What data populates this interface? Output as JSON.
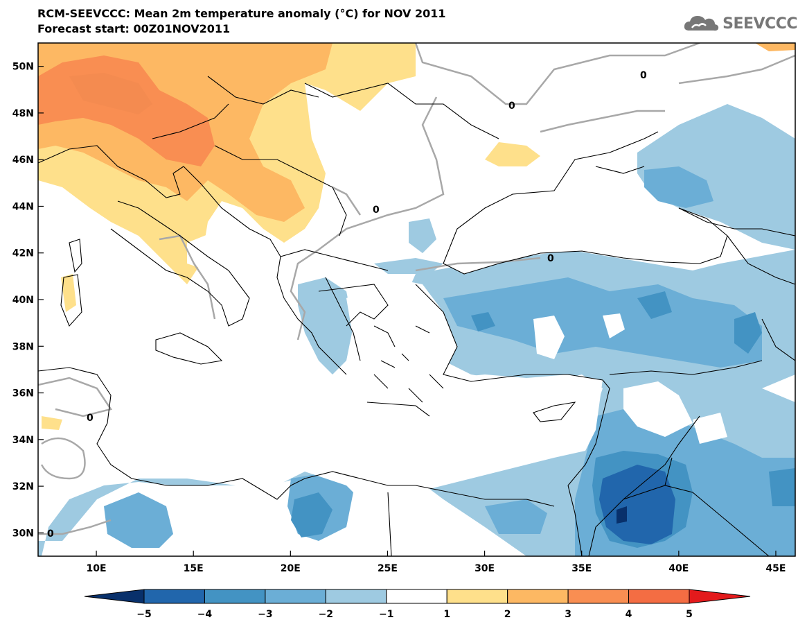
{
  "header": {
    "title": "RCM-SEEVCCC: Mean 2m temperature anomaly (°C) for NOV 2011",
    "subtitle": "Forecast start: 00Z01NOV2011"
  },
  "logo": {
    "text": "SEEVCCC",
    "icon": "cloud-icon"
  },
  "map": {
    "lat_labels": [
      "50N",
      "48N",
      "46N",
      "44N",
      "42N",
      "40N",
      "38N",
      "36N",
      "34N",
      "32N",
      "30N"
    ],
    "lat_values": [
      50,
      48,
      46,
      44,
      42,
      40,
      38,
      36,
      34,
      32,
      30
    ],
    "lon_labels": [
      "10E",
      "15E",
      "20E",
      "25E",
      "30E",
      "35E",
      "40E",
      "45E"
    ],
    "lon_values": [
      10,
      15,
      20,
      25,
      30,
      35,
      40,
      45
    ],
    "lon_range": [
      7,
      46
    ],
    "lat_range": [
      29,
      51
    ],
    "contour_label": "0"
  },
  "colorbar": {
    "labels": [
      "−5",
      "−4",
      "−3",
      "−2",
      "−1",
      "1",
      "2",
      "3",
      "4",
      "5"
    ],
    "colors": [
      "#08306b",
      "#2166ac",
      "#4393c3",
      "#6baed6",
      "#9ecae1",
      "#ffffff",
      "#fee08b",
      "#fdb863",
      "#f98e52",
      "#f46d43",
      "#e31a1c"
    ],
    "extend": "both"
  }
}
